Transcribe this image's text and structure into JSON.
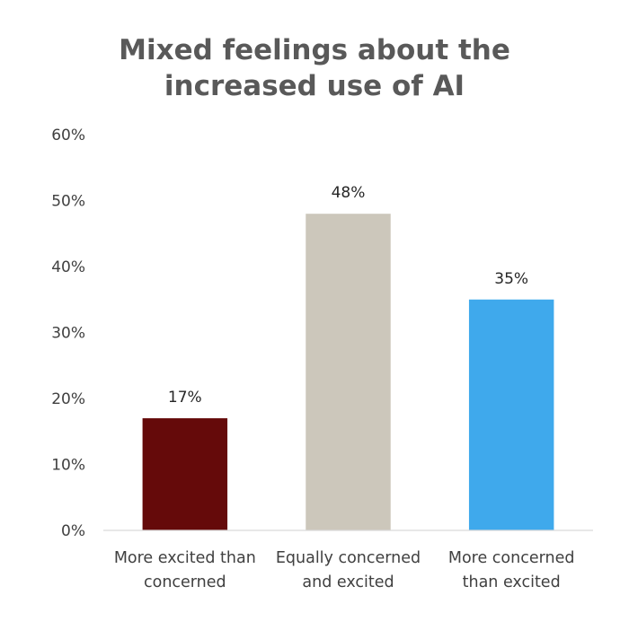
{
  "chart_data": {
    "type": "bar",
    "title_lines": [
      "Mixed feelings about the",
      "increased use of AI"
    ],
    "categories": [
      [
        "More excited than",
        "concerned"
      ],
      [
        "Equally concerned",
        "and excited"
      ],
      [
        "More concerned",
        "than excited"
      ]
    ],
    "values": [
      17,
      48,
      35
    ],
    "data_labels": [
      "17%",
      "48%",
      "35%"
    ],
    "colors": [
      "#650a0a",
      "#ccc7bb",
      "#3fa9ec"
    ],
    "ylim": [
      0,
      60
    ],
    "yticks": [
      0,
      10,
      20,
      30,
      40,
      50,
      60
    ],
    "ytick_labels": [
      "0%",
      "10%",
      "20%",
      "30%",
      "40%",
      "50%",
      "60%"
    ],
    "grid": false,
    "legend": "none",
    "xlabel": "",
    "ylabel": ""
  }
}
